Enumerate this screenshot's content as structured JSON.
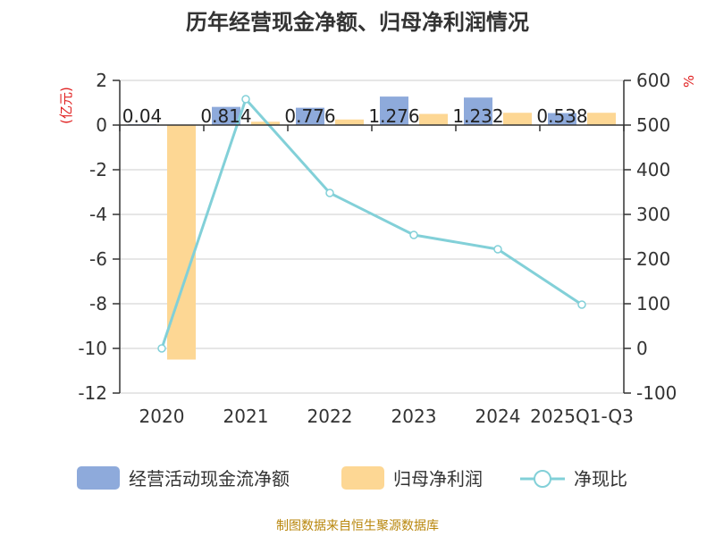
{
  "chart_data": {
    "type": "bar",
    "title": "历年经营现金净额、归母净利润情况",
    "categories": [
      "2020",
      "2021",
      "2022",
      "2023",
      "2024",
      "2025Q1-Q3"
    ],
    "series": [
      {
        "name": "经营活动现金流净额",
        "type": "bar",
        "axis": "left",
        "color": "#8eaadb",
        "values": [
          0.04,
          0.814,
          0.776,
          1.276,
          1.232,
          0.538
        ],
        "labels": [
          "0.04",
          "0.814",
          "0.776",
          "1.276",
          "1.232",
          "0.538"
        ]
      },
      {
        "name": "归母净利润",
        "type": "bar",
        "axis": "left",
        "color": "#fdd794",
        "values": [
          -10.5,
          0.15,
          0.25,
          0.5,
          0.55,
          0.55
        ]
      },
      {
        "name": "净现比",
        "type": "line",
        "axis": "right",
        "color": "#82d0d8",
        "values": [
          0,
          558,
          348,
          254,
          222,
          98
        ]
      }
    ],
    "left_axis": {
      "unit": "(亿元)",
      "ylim": [
        -12,
        2
      ],
      "ticks": [
        2,
        0,
        -2,
        -4,
        -6,
        -8,
        -10,
        -12
      ]
    },
    "right_axis": {
      "unit": "%",
      "ylim": [
        -100,
        600
      ],
      "ticks": [
        600,
        500,
        400,
        300,
        200,
        100,
        0,
        -100
      ]
    },
    "grid": true,
    "legend_position": "bottom-center"
  },
  "source_note": "制图数据来自恒生聚源数据库"
}
